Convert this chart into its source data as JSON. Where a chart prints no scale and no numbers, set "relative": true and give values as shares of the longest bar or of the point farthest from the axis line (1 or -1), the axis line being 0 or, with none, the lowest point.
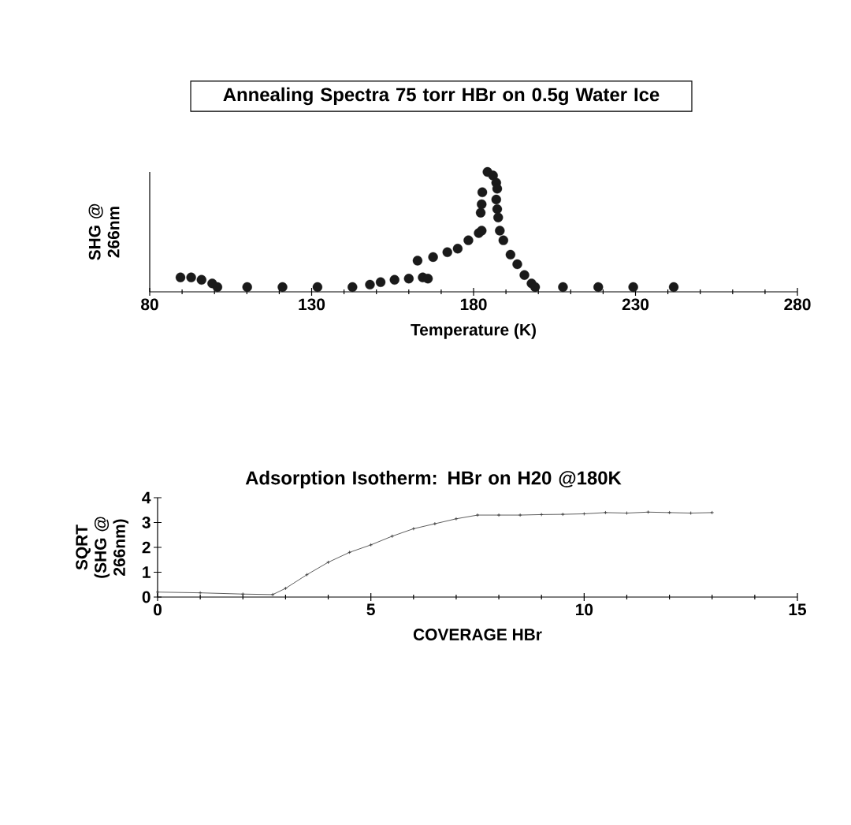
{
  "chart_data": [
    {
      "type": "scatter",
      "title": "Annealing Spectra 75 torr HBr on 0.5g Water Ice",
      "xlabel": "Temperature    (K)",
      "ylabel": "SHG @ 266nm",
      "relative": true,
      "tick_labels": "x",
      "marker": "circle",
      "color": "#1a1a1a",
      "x": [
        89.5,
        92.8,
        96.0,
        99.3,
        100.9,
        110.1,
        121.0,
        131.8,
        142.6,
        148.0,
        151.3,
        155.6,
        160.0,
        164.3,
        165.9,
        162.7,
        167.5,
        171.9,
        175.1,
        178.4,
        181.6,
        182.5,
        182.2,
        182.5,
        182.7,
        184.3,
        186.0,
        187.0,
        187.3,
        187.0,
        187.3,
        187.6,
        188.1,
        189.2,
        191.4,
        193.5,
        195.7,
        197.9,
        199.0,
        207.6,
        218.5,
        229.3,
        241.8
      ],
      "values": [
        0.12,
        0.12,
        0.1,
        0.07,
        0.04,
        0.04,
        0.04,
        0.04,
        0.04,
        0.06,
        0.08,
        0.1,
        0.11,
        0.12,
        0.11,
        0.26,
        0.29,
        0.33,
        0.36,
        0.43,
        0.49,
        0.51,
        0.66,
        0.73,
        0.83,
        1.0,
        0.97,
        0.91,
        0.86,
        0.77,
        0.69,
        0.62,
        0.51,
        0.43,
        0.31,
        0.23,
        0.14,
        0.07,
        0.04,
        0.04,
        0.04,
        0.04,
        0.04
      ],
      "xlim": [
        80,
        280
      ],
      "xticks": [
        80,
        130,
        180,
        230,
        280
      ]
    },
    {
      "type": "line",
      "title": "Adsorption Isotherm: HBr on H20 @180K",
      "xlabel": "COVERAGE HBr",
      "ylabel": "SQRT (SHG @ 266nm)",
      "marker": "cross",
      "color": "#333333",
      "x": [
        0,
        1,
        2,
        2.7,
        3,
        3.5,
        4,
        4.5,
        5,
        5.5,
        6,
        6.5,
        7,
        7.5,
        8,
        8.5,
        9,
        9.5,
        10,
        10.5,
        11,
        11.5,
        12,
        12.5,
        13
      ],
      "values": [
        0.2,
        0.17,
        0.12,
        0.1,
        0.35,
        0.9,
        1.4,
        1.8,
        2.1,
        2.45,
        2.75,
        2.95,
        3.15,
        3.3,
        3.3,
        3.3,
        3.32,
        3.33,
        3.35,
        3.4,
        3.38,
        3.42,
        3.4,
        3.38,
        3.4
      ],
      "xlim": [
        0,
        15
      ],
      "xticks": [
        0,
        5,
        10,
        15
      ],
      "ylim": [
        0,
        4
      ],
      "yticks": [
        0,
        1,
        2,
        3,
        4
      ]
    }
  ]
}
